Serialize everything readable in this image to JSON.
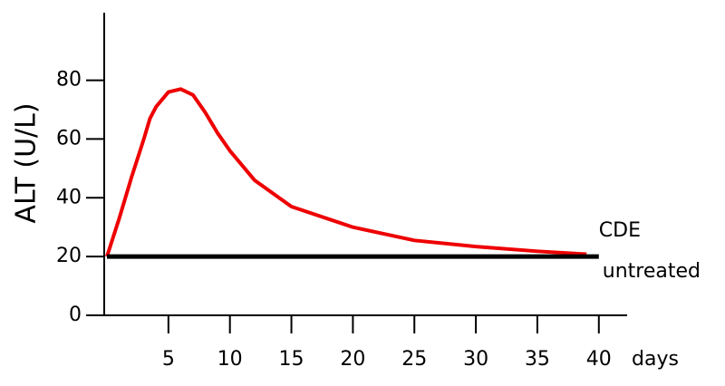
{
  "chart_data": {
    "type": "line",
    "ylabel": "ALT (U/L)",
    "xlabel": "days",
    "xlim": [
      0,
      42.3
    ],
    "ylim": [
      0,
      103
    ],
    "xticks": [
      5,
      10,
      15,
      20,
      25,
      30,
      35,
      40
    ],
    "yticks": [
      0,
      20,
      40,
      60,
      80
    ],
    "series": [
      {
        "name": "CDE",
        "color": "#ee0000",
        "x": [
          0,
          1,
          2,
          3,
          3.5,
          4,
          5,
          6,
          7,
          8,
          9,
          10,
          12,
          15,
          20,
          25,
          30,
          35,
          39
        ],
        "values": [
          20,
          33,
          47,
          60,
          67,
          71,
          76,
          77,
          75,
          69,
          62,
          56,
          46,
          37,
          30,
          25.5,
          23.4,
          21.8,
          20.8
        ]
      },
      {
        "name": "untreated",
        "color": "#000000",
        "x": [
          0,
          40
        ],
        "values": [
          20,
          20
        ]
      }
    ]
  }
}
